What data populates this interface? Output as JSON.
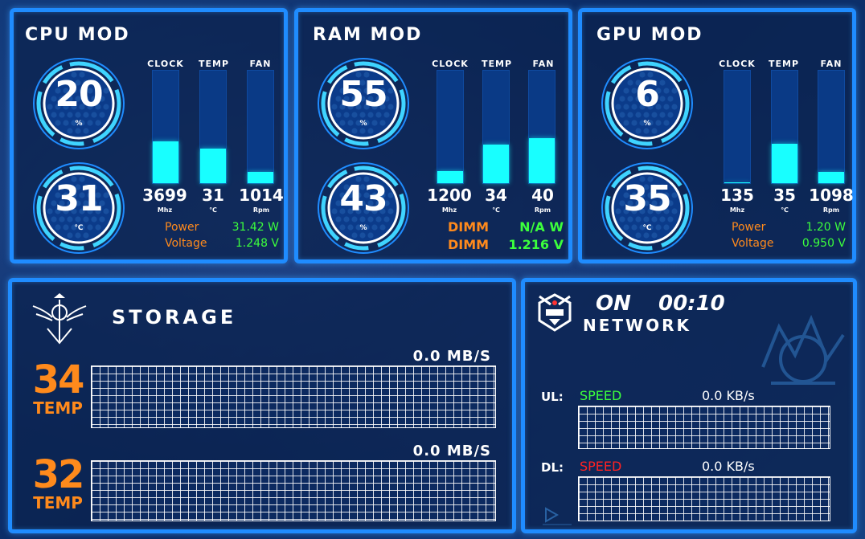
{
  "colors": {
    "panel_border": "#1f8cff",
    "bar_fill": "#18ffff",
    "orange": "#ff8a1c",
    "green": "#3cff3c",
    "red": "#ff2222"
  },
  "bar_headers": {
    "clock": "CLOCK",
    "temp": "TEMP",
    "fan": "FAN"
  },
  "cpu": {
    "title": "CPU MOD",
    "load": {
      "value": "20",
      "unit": "%"
    },
    "temp": {
      "value": "31",
      "unit": "℃"
    },
    "bars": [
      {
        "value": "3699",
        "unit": "Mhz",
        "fill": 0.37
      },
      {
        "value": "31",
        "unit": "℃",
        "fill": 0.31
      },
      {
        "value": "1014",
        "unit": "Rpm",
        "fill": 0.1
      }
    ],
    "power_label": "Power",
    "power_value": "31.42 W",
    "voltage_label": "Voltage",
    "voltage_value": "1.248 V"
  },
  "ram": {
    "title": "RAM MOD",
    "load": {
      "value": "55",
      "unit": "%"
    },
    "temp": {
      "value": "43",
      "unit": "%"
    },
    "bars": [
      {
        "value": "1200",
        "unit": "Mhz",
        "fill": 0.11
      },
      {
        "value": "34",
        "unit": "℃",
        "fill": 0.34
      },
      {
        "value": "40",
        "unit": "Rpm",
        "fill": 0.4
      }
    ],
    "power_label": "DIMM",
    "power_value": "N/A W",
    "voltage_label": "DIMM",
    "voltage_value": "1.216 V"
  },
  "gpu": {
    "title": "GPU MOD",
    "load": {
      "value": "6",
      "unit": "%"
    },
    "temp": {
      "value": "35",
      "unit": "℃"
    },
    "bars": [
      {
        "value": "135",
        "unit": "Mhz",
        "fill": 0.01
      },
      {
        "value": "35",
        "unit": "℃",
        "fill": 0.35
      },
      {
        "value": "1098",
        "unit": "Rpm",
        "fill": 0.1
      }
    ],
    "power_label": "Power",
    "power_value": "1.20 W",
    "voltage_label": "Voltage",
    "voltage_value": "0.950 V"
  },
  "storage": {
    "title": "STORAGE",
    "drives": [
      {
        "temp": "34",
        "temp_label": "TEMP",
        "rate": "0.0 MB/S"
      },
      {
        "temp": "32",
        "temp_label": "TEMP",
        "rate": "0.0 MB/S"
      }
    ]
  },
  "network": {
    "status": "ON",
    "time": "00:10",
    "title": "NETWORK",
    "ul_label": "UL:",
    "ul_speed_label": "SPEED",
    "ul_speed": "0.0 KB/s",
    "dl_label": "DL:",
    "dl_speed_label": "SPEED",
    "dl_speed": "0.0 KB/s"
  }
}
